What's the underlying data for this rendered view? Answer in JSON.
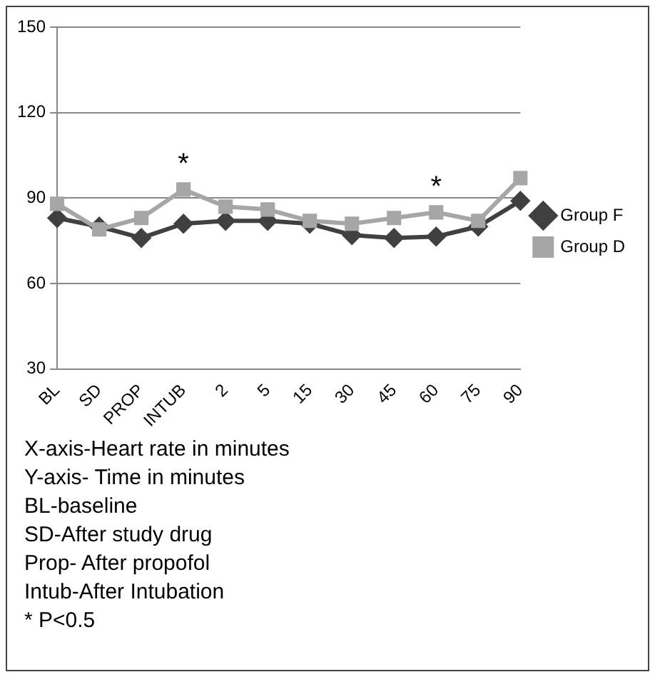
{
  "chart_data": {
    "type": "line",
    "categories": [
      "BL",
      "SD",
      "PROP",
      "INTUB",
      "2",
      "5",
      "15",
      "30",
      "45",
      "60",
      "75",
      "90"
    ],
    "series": [
      {
        "name": "Group F",
        "color": "#404040",
        "marker": "diamond",
        "values": [
          83,
          80,
          76,
          81,
          82,
          82,
          81,
          77,
          76,
          76.5,
          80,
          89
        ]
      },
      {
        "name": "Group D",
        "color": "#a6a6a6",
        "marker": "square",
        "values": [
          88,
          79,
          83,
          93,
          87,
          86,
          82,
          81,
          83,
          85,
          82,
          97
        ]
      }
    ],
    "ylim": [
      30,
      150
    ],
    "yticks": [
      30,
      60,
      90,
      120,
      150
    ],
    "grid": "y",
    "legend": "right",
    "line_style": "solid",
    "annotations": [
      {
        "text": "*",
        "x": "INTUB",
        "y": 93
      },
      {
        "text": "*",
        "x": "60",
        "y": 85
      },
      "X-axis-Heart rate in minutes",
      "Y-axis- Time in minutes",
      "BL-baseline",
      "SD-After study drug",
      "Prop- After propofol",
      "Intub-After Intubation",
      "* P<0.5"
    ]
  }
}
